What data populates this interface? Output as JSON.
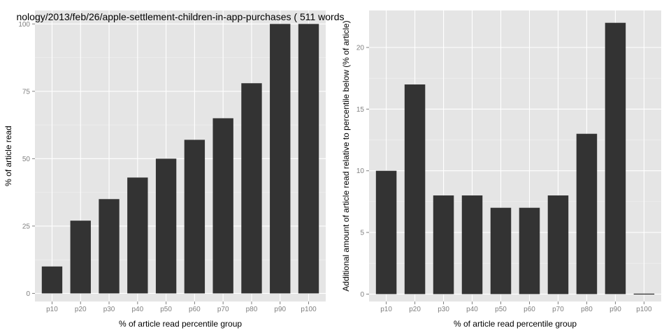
{
  "chart_data": [
    {
      "type": "bar",
      "title": "nology/2013/feb/26/apple-settlement-children-in-app-purchases ( 511 words",
      "xlabel": "% of article read percentile group",
      "ylabel": "% of article read",
      "categories": [
        "p10",
        "p20",
        "p30",
        "p40",
        "p50",
        "p60",
        "p70",
        "p80",
        "p90",
        "p100"
      ],
      "values": [
        10,
        27,
        35,
        43,
        50,
        57,
        65,
        78,
        100,
        100
      ],
      "ylim": [
        -3,
        105
      ],
      "yticks": [
        0,
        25,
        50,
        75,
        100
      ],
      "grid": true,
      "bar_color": "#333333",
      "panel_color": "#e5e5e5"
    },
    {
      "type": "bar",
      "title": "",
      "xlabel": "% of article read percentile group",
      "ylabel": "Additional amount of article read relative to percentile below (% of article)",
      "categories": [
        "p10",
        "p20",
        "p30",
        "p40",
        "p50",
        "p60",
        "p70",
        "p80",
        "p90",
        "p100"
      ],
      "values": [
        10,
        17,
        8,
        8,
        7,
        7,
        8,
        13,
        22,
        0
      ],
      "ylim": [
        -0.6,
        23
      ],
      "yticks": [
        0,
        5,
        10,
        15,
        20
      ],
      "grid": true,
      "bar_color": "#333333",
      "panel_color": "#e5e5e5"
    }
  ]
}
